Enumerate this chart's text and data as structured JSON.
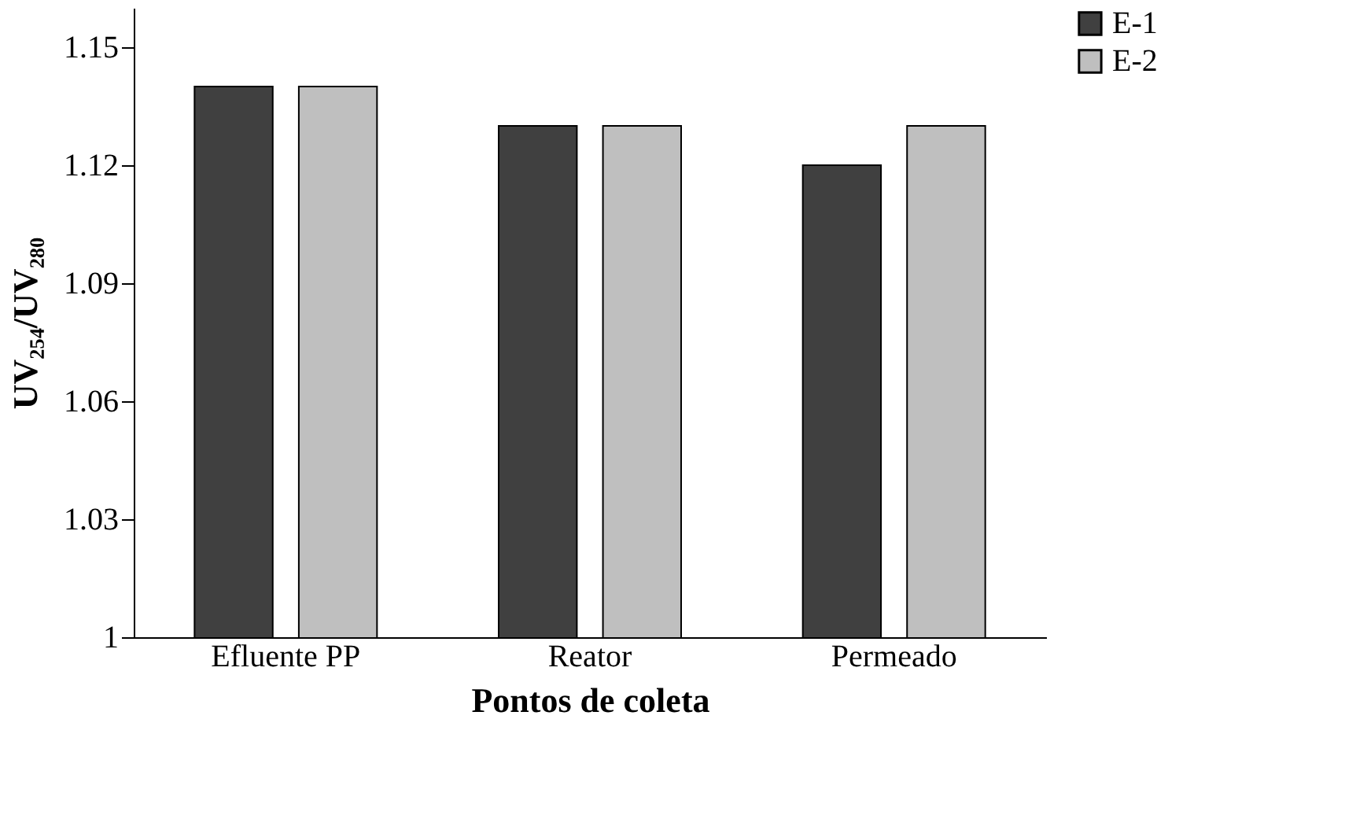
{
  "chart_data": {
    "type": "bar",
    "categories": [
      "Efluente PP",
      "Reator",
      "Permeado"
    ],
    "series": [
      {
        "name": "E-1",
        "color": "#404040",
        "values": [
          1.14,
          1.13,
          1.12
        ]
      },
      {
        "name": "E-2",
        "color": "#bfbfbf",
        "values": [
          1.14,
          1.13,
          1.13
        ]
      }
    ],
    "xlabel": "Pontos de coleta",
    "ylabel": "UV₂₅₄/UV₂₈₀",
    "ylim": [
      1,
      1.16
    ],
    "yticks": [
      1,
      1.03,
      1.06,
      1.09,
      1.12,
      1.15
    ],
    "grid": false,
    "legend": "right"
  }
}
